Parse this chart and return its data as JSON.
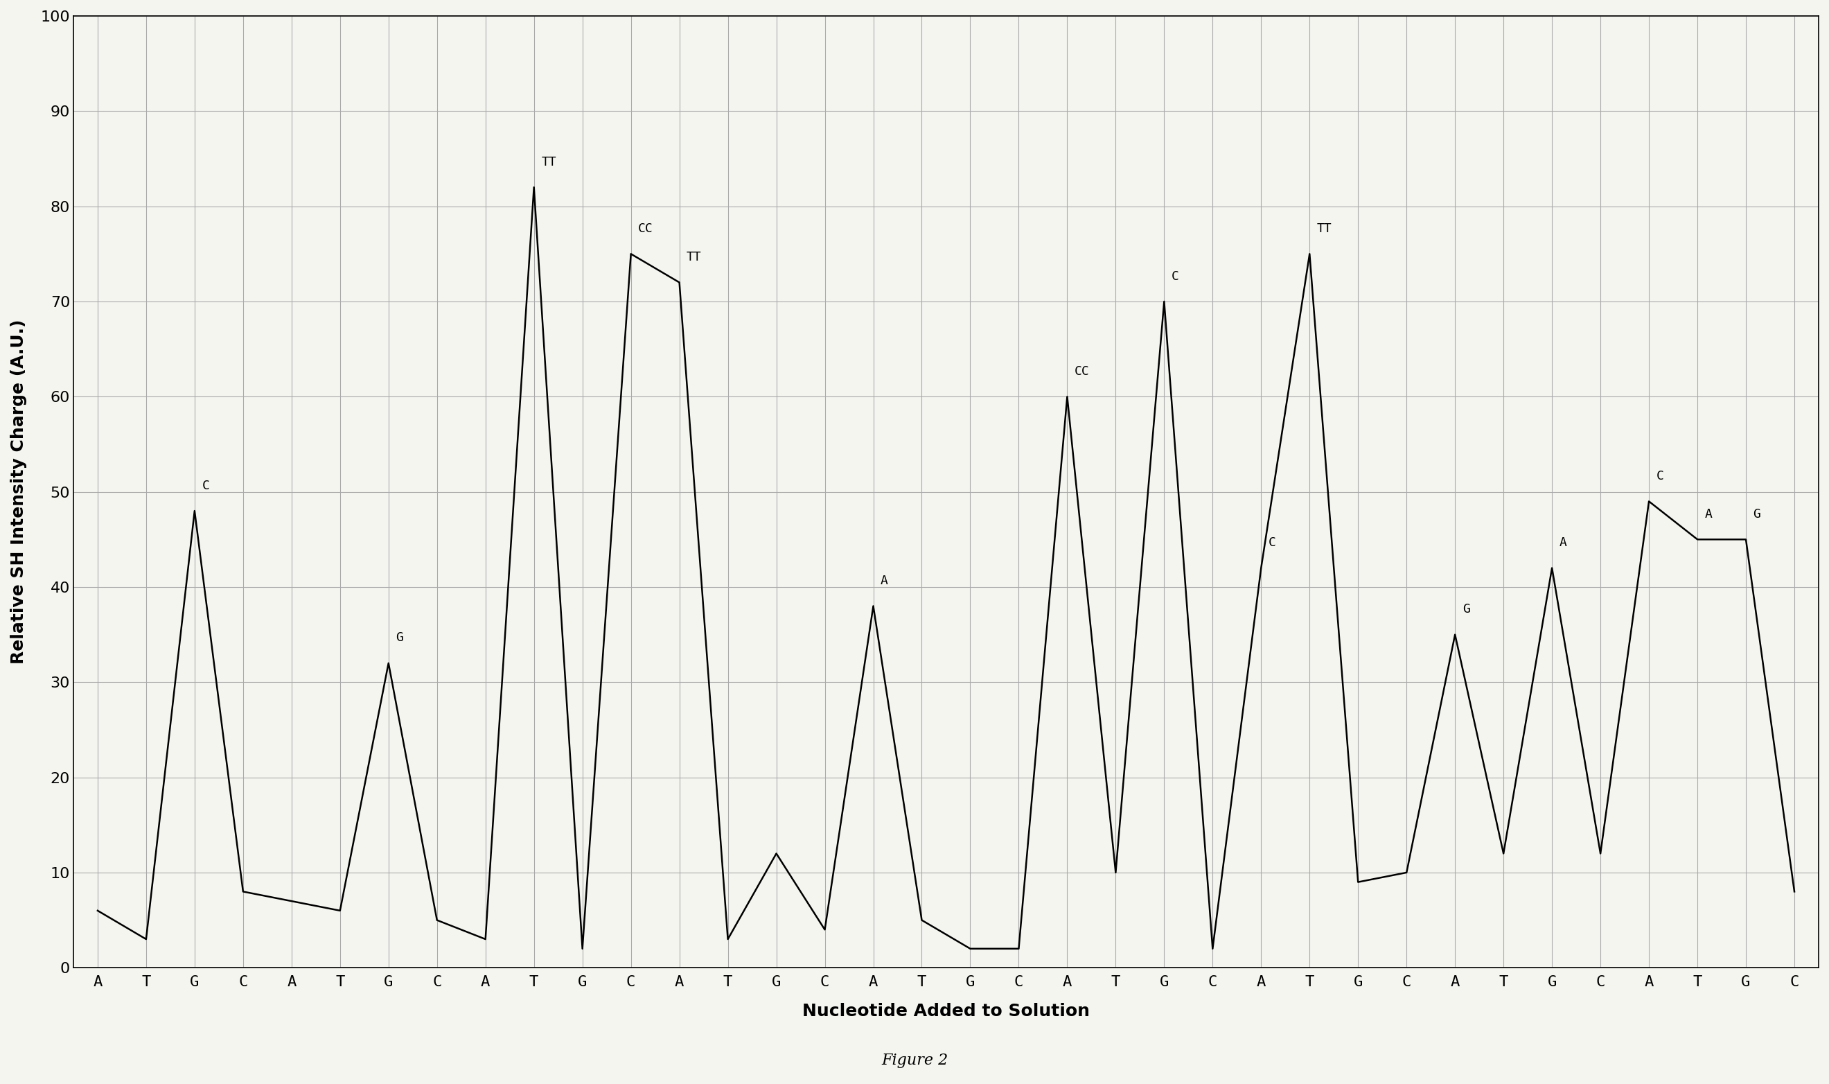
{
  "xlabel": "Nucleotide Added to Solution",
  "ylabel": "Relative SH Intensity Charge (A.U.)",
  "figure_label": "Figure 2",
  "ylim": [
    0,
    100
  ],
  "yticks": [
    0,
    10,
    20,
    30,
    40,
    50,
    60,
    70,
    80,
    90,
    100
  ],
  "x_labels": [
    "A",
    "T",
    "G",
    "C",
    "A",
    "T",
    "G",
    "C",
    "A",
    "T",
    "G",
    "C",
    "A",
    "T",
    "G",
    "C",
    "A",
    "T",
    "G",
    "C",
    "A",
    "T",
    "G",
    "C",
    "A",
    "T",
    "G",
    "C",
    "A",
    "T",
    "G",
    "C",
    "A",
    "T",
    "G",
    "C"
  ],
  "y_values": [
    6,
    3,
    48,
    8,
    7,
    6,
    32,
    5,
    3,
    82,
    2,
    75,
    72,
    3,
    12,
    4,
    38,
    5,
    2,
    2,
    60,
    10,
    70,
    2,
    42,
    75,
    9,
    10,
    35,
    12,
    42,
    12,
    49,
    45,
    45,
    8
  ],
  "peak_annotations": [
    {
      "idx": 2,
      "label": "C",
      "xoff": 0.15,
      "yoff": 2.0
    },
    {
      "idx": 6,
      "label": "G",
      "xoff": 0.15,
      "yoff": 2.0
    },
    {
      "idx": 9,
      "label": "TT",
      "xoff": 0.15,
      "yoff": 2.0
    },
    {
      "idx": 11,
      "label": "CC",
      "xoff": 0.15,
      "yoff": 2.0
    },
    {
      "idx": 12,
      "label": "TT",
      "xoff": 0.15,
      "yoff": 2.0
    },
    {
      "idx": 16,
      "label": "A",
      "xoff": 0.15,
      "yoff": 2.0
    },
    {
      "idx": 20,
      "label": "CC",
      "xoff": 0.15,
      "yoff": 2.0
    },
    {
      "idx": 22,
      "label": "C",
      "xoff": 0.15,
      "yoff": 2.0
    },
    {
      "idx": 24,
      "label": "C",
      "xoff": 0.15,
      "yoff": 2.0
    },
    {
      "idx": 25,
      "label": "TT",
      "xoff": 0.15,
      "yoff": 2.0
    },
    {
      "idx": 28,
      "label": "G",
      "xoff": 0.15,
      "yoff": 2.0
    },
    {
      "idx": 30,
      "label": "A",
      "xoff": 0.15,
      "yoff": 2.0
    },
    {
      "idx": 32,
      "label": "C",
      "xoff": 0.15,
      "yoff": 2.0
    },
    {
      "idx": 33,
      "label": "A",
      "xoff": 0.15,
      "yoff": 2.0
    },
    {
      "idx": 34,
      "label": "G",
      "xoff": 0.15,
      "yoff": 2.0
    }
  ],
  "background_color": "#f5f5f0",
  "line_color": "#000000",
  "grid_color": "#aaaaaa",
  "label_fontsize": 18,
  "tick_fontsize": 16,
  "annot_fontsize": 13
}
